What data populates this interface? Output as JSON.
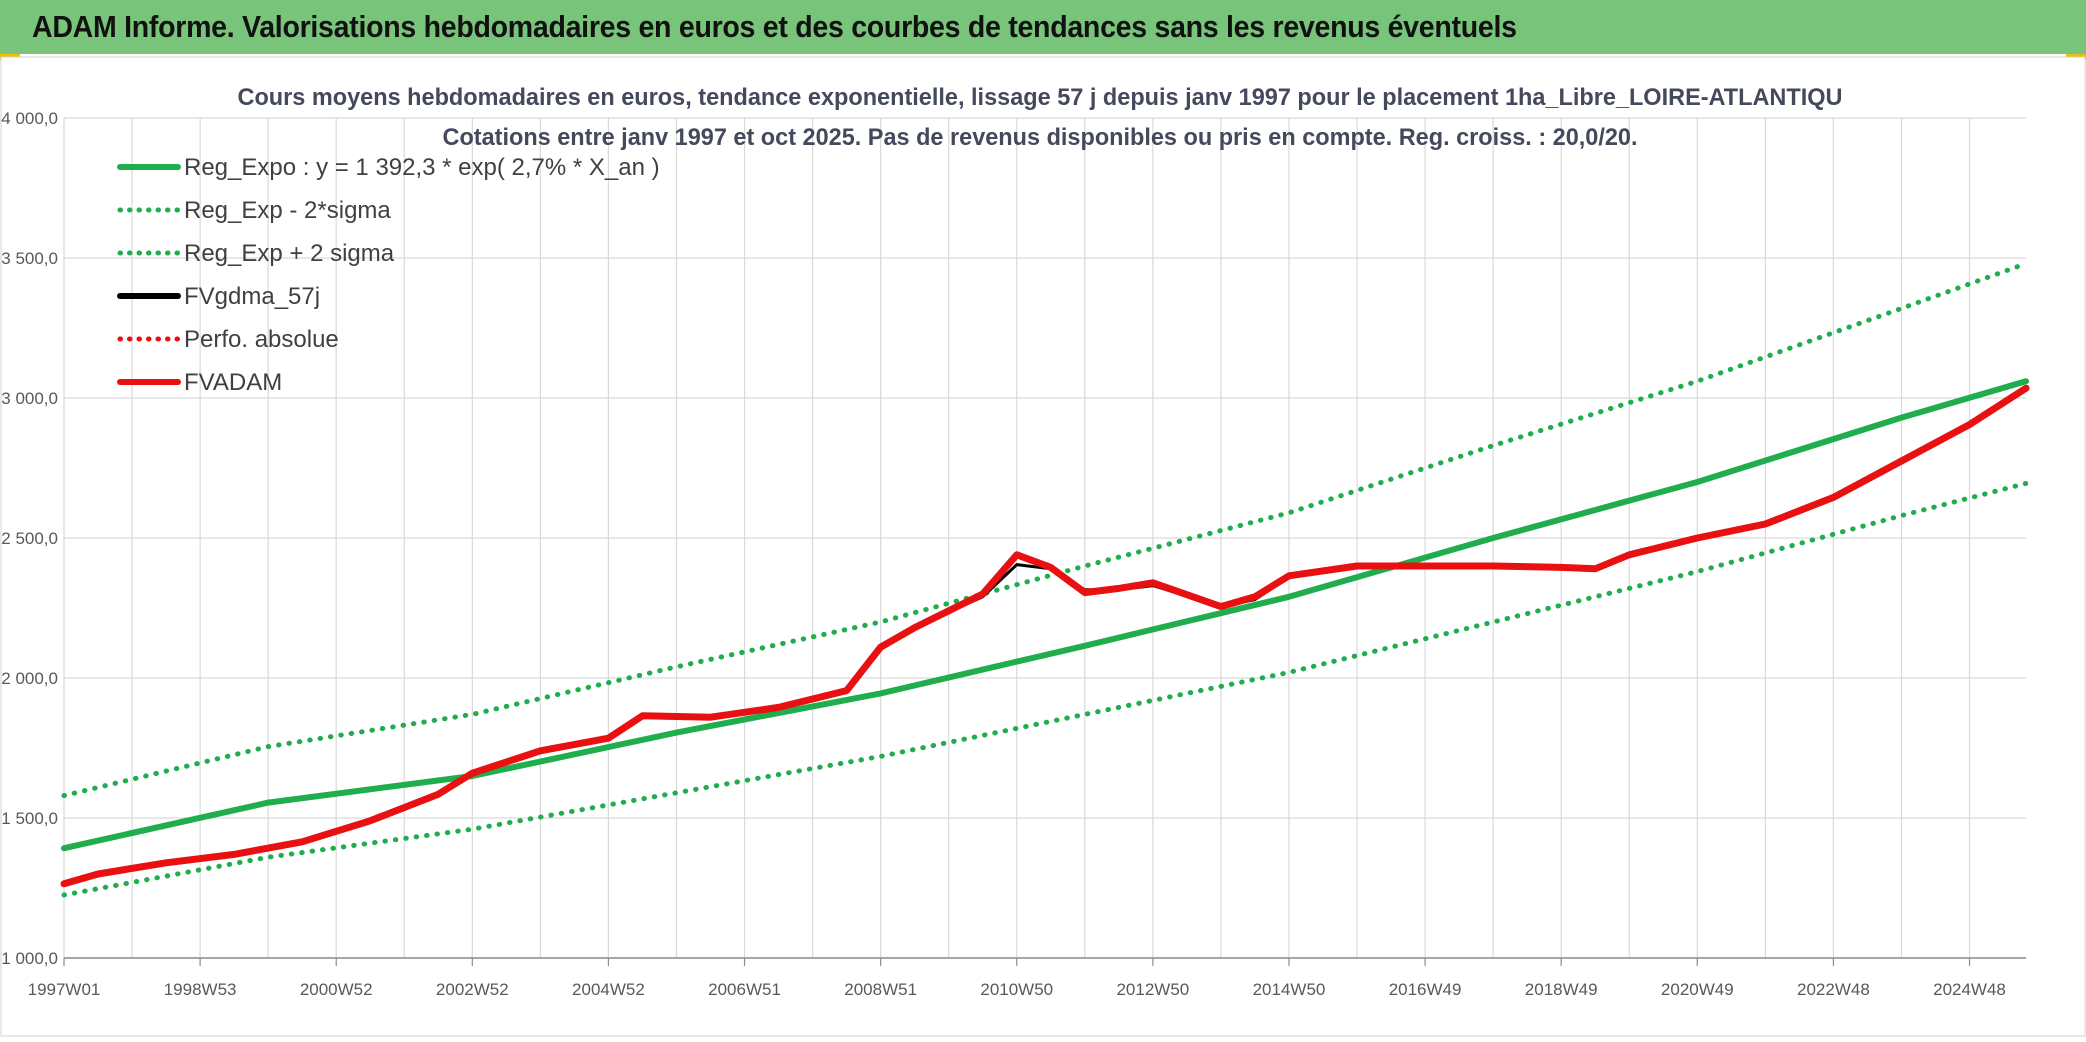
{
  "banner": {
    "title": "ADAM Informe. Valorisations hebdomadaires en euros et des courbes de tendances sans les revenus éventuels"
  },
  "colors": {
    "banner": "#77c47a",
    "regression": "#1fad4d",
    "fvadam": "#e81010",
    "fvgdma": "#000000",
    "grid": "#d9d9d9",
    "title_text": "#444a5c"
  },
  "chart_data": {
    "type": "line",
    "title": "Cours moyens hebdomadaires en euros, tendance exponentielle, lissage 57 j depuis janv 1997 pour le placement 1ha_Libre_LOIRE-ATLANTIQU",
    "subtitle": "Cotations entre janv 1997 et oct 2025. Pas de revenus disponibles ou pris en compte. Reg. croiss. : 20,0/20.",
    "xlabel": "",
    "ylabel": "",
    "ylim": [
      1000,
      4000
    ],
    "xlim": [
      1997.0,
      2025.83
    ],
    "y_ticks": [
      "1 000,0",
      "1 500,0",
      "2 000,0",
      "2 500,0",
      "3 000,0",
      "3 500,0",
      "4 000,0"
    ],
    "y_tick_values": [
      1000,
      1500,
      2000,
      2500,
      3000,
      3500,
      4000
    ],
    "x_tick_labels": [
      "1997W01",
      "1998W53",
      "2000W52",
      "2002W52",
      "2004W52",
      "2006W51",
      "2008W51",
      "2010W50",
      "2012W50",
      "2014W50",
      "2016W49",
      "2018W49",
      "2020W49",
      "2022W48",
      "2024W48"
    ],
    "x_tick_values": [
      1997.0,
      1999.0,
      2001.0,
      2003.0,
      2005.0,
      2007.0,
      2009.0,
      2011.0,
      2013.0,
      2015.0,
      2017.0,
      2019.0,
      2021.0,
      2023.0,
      2025.0
    ],
    "grid": true,
    "legend_position": "top-left",
    "legend": [
      {
        "label": "Reg_Expo : y = 1 392,3 * exp( 2,7% *  X_an )",
        "color": "#1fad4d",
        "style": "solid"
      },
      {
        "label": "Reg_Exp - 2*sigma",
        "color": "#1fad4d",
        "style": "dotted"
      },
      {
        "label": "Reg_Exp + 2 sigma",
        "color": "#1fad4d",
        "style": "dotted"
      },
      {
        "label": "FVgdma_57j",
        "color": "#000000",
        "style": "solid"
      },
      {
        "label": "Perfo. absolue",
        "color": "#e81010",
        "style": "dotted"
      },
      {
        "label": "FVADAM",
        "color": "#e81010",
        "style": "solid"
      }
    ],
    "series": [
      {
        "name": "Reg_Expo : y = 1 392,3 * exp( 2,7% *  X_an )",
        "style": "solid",
        "x": [
          1997.0,
          2000.0,
          2003.0,
          2006.0,
          2009.0,
          2012.0,
          2015.0,
          2018.0,
          2021.0,
          2024.0,
          2025.83
        ],
        "values": [
          1392,
          1555,
          1650,
          1805,
          1945,
          2115,
          2290,
          2500,
          2700,
          2930,
          3060
        ]
      },
      {
        "name": "Reg_Exp - 2*sigma",
        "style": "dotted",
        "x": [
          1997.0,
          2000.0,
          2003.0,
          2006.0,
          2009.0,
          2012.0,
          2015.0,
          2018.0,
          2021.0,
          2024.0,
          2025.83
        ],
        "values": [
          1225,
          1360,
          1460,
          1590,
          1720,
          1870,
          2020,
          2200,
          2380,
          2580,
          2695
        ]
      },
      {
        "name": "Reg_Exp + 2 sigma",
        "style": "dotted",
        "x": [
          1997.0,
          2000.0,
          2003.0,
          2006.0,
          2009.0,
          2012.0,
          2015.0,
          2018.0,
          2021.0,
          2024.0,
          2025.83
        ],
        "values": [
          1580,
          1755,
          1870,
          2040,
          2200,
          2400,
          2590,
          2830,
          3060,
          3320,
          3480
        ]
      },
      {
        "name": "FVgdma_57j",
        "style": "solid",
        "x": [
          1997.0,
          1997.5,
          1998.5,
          1999.5,
          2000.5,
          2001.5,
          2002.5,
          2003.0,
          2004.0,
          2005.0,
          2005.5,
          2006.5,
          2007.5,
          2008.5,
          2009.0,
          2009.5,
          2010.5,
          2011.0,
          2011.5,
          2012.0,
          2012.5,
          2013.0,
          2014.0,
          2014.5,
          2015.0,
          2016.0,
          2017.0,
          2018.0,
          2019.0,
          2019.5,
          2020.0,
          2021.0,
          2022.0,
          2023.0,
          2024.0,
          2025.0,
          2025.83
        ],
        "values": [
          1265,
          1300,
          1340,
          1370,
          1415,
          1490,
          1585,
          1660,
          1740,
          1785,
          1865,
          1860,
          1895,
          1955,
          2110,
          2180,
          2290,
          2405,
          2390,
          2315,
          2315,
          2330,
          2255,
          2280,
          2360,
          2395,
          2395,
          2395,
          2390,
          2390,
          2435,
          2495,
          2545,
          2640,
          2770,
          2900,
          3030
        ]
      },
      {
        "name": "FVADAM",
        "style": "solid",
        "x": [
          1997.0,
          1997.5,
          1998.5,
          1999.5,
          2000.5,
          2001.5,
          2002.5,
          2003.0,
          2004.0,
          2005.0,
          2005.5,
          2006.5,
          2007.5,
          2008.5,
          2009.0,
          2009.5,
          2010.5,
          2011.0,
          2011.5,
          2012.0,
          2012.5,
          2013.0,
          2014.0,
          2014.5,
          2015.0,
          2016.0,
          2017.0,
          2018.0,
          2019.0,
          2019.5,
          2020.0,
          2021.0,
          2022.0,
          2023.0,
          2024.0,
          2025.0,
          2025.83
        ],
        "values": [
          1265,
          1300,
          1340,
          1370,
          1415,
          1490,
          1585,
          1660,
          1740,
          1785,
          1865,
          1860,
          1895,
          1955,
          2110,
          2180,
          2300,
          2440,
          2395,
          2305,
          2320,
          2340,
          2255,
          2290,
          2365,
          2400,
          2400,
          2400,
          2395,
          2390,
          2440,
          2500,
          2550,
          2645,
          2775,
          2905,
          3035
        ]
      }
    ]
  }
}
